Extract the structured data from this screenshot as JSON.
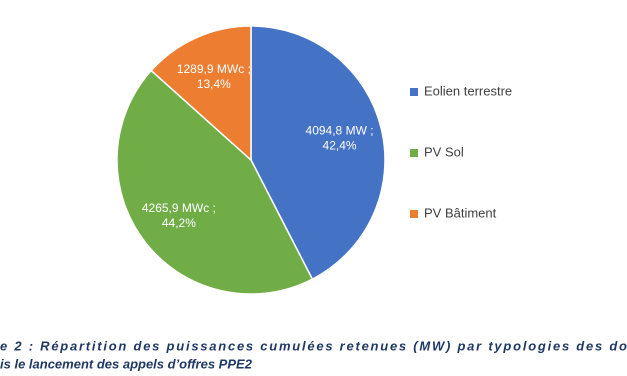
{
  "chart_data": {
    "type": "pie",
    "categories": [
      "Eolien terrestre",
      "PV Sol",
      "PV Bâtiment"
    ],
    "values": [
      4094.8,
      4265.9,
      1289.9
    ],
    "value_labels": [
      [
        "4094,8 MW ;",
        "42,4%"
      ],
      [
        "4265,9 MWc ;",
        "44,2%"
      ],
      [
        "1289,9 MWc ;",
        "13,4%"
      ]
    ],
    "colors": [
      "#4472c4",
      "#70ad47",
      "#ed7d31"
    ],
    "legend": "right",
    "caption": [
      "e 2 : Répartition des puissances cumulées retenues (MW) par typologies des do",
      "is le lancement des appels d’offres PPE2"
    ]
  }
}
